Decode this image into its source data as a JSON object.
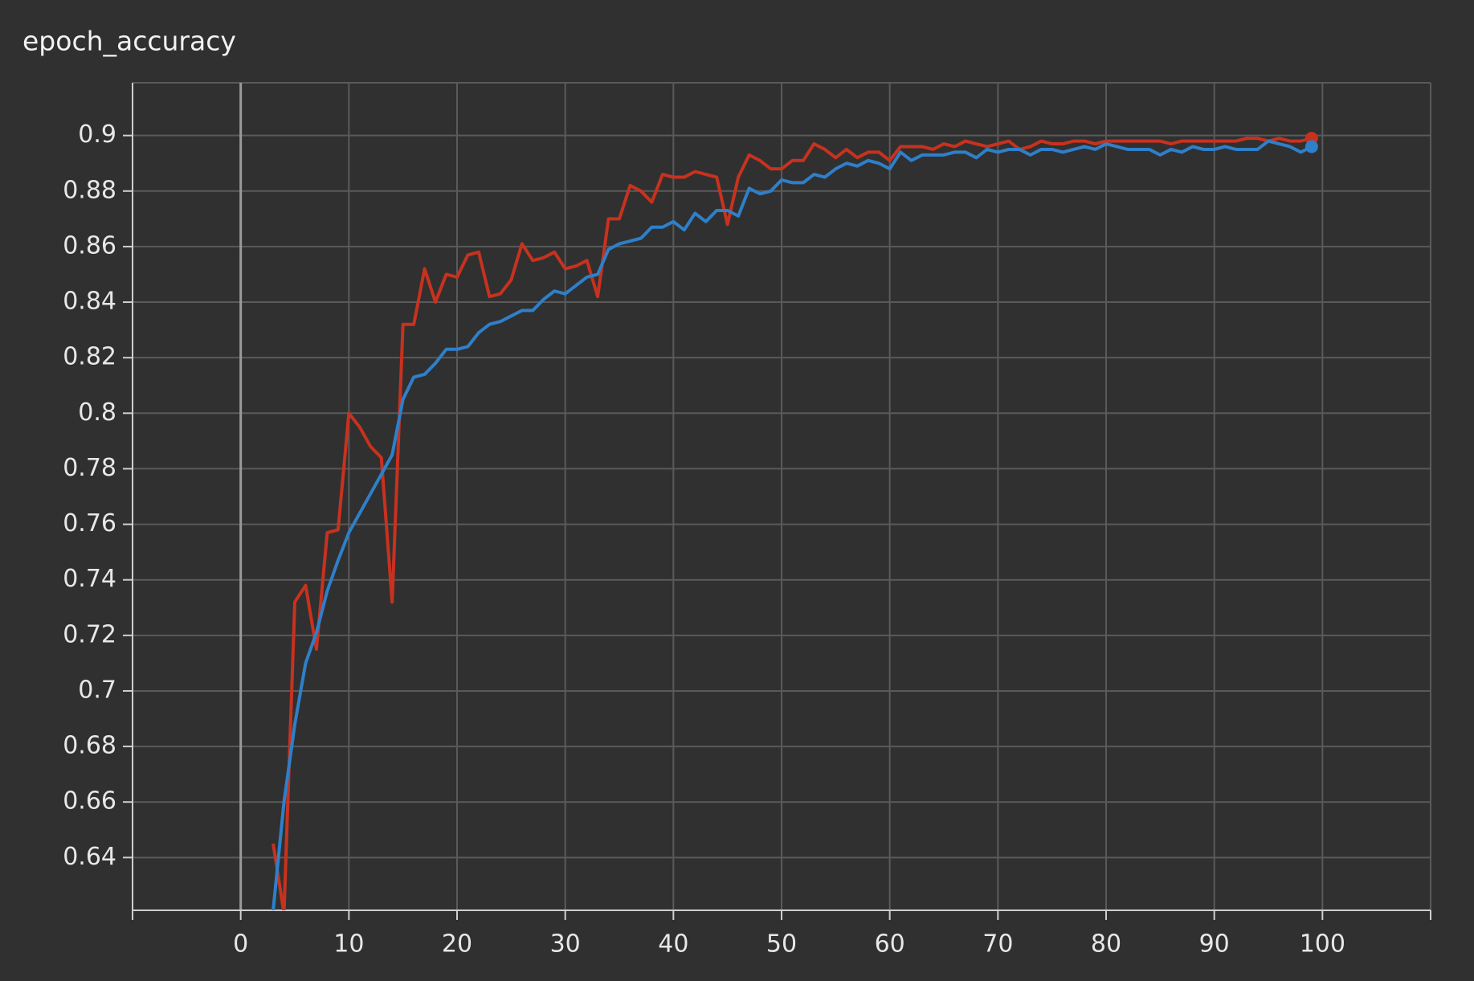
{
  "chart_data": {
    "type": "line",
    "title": "epoch_accuracy",
    "x": [
      3,
      4,
      5,
      6,
      7,
      8,
      9,
      10,
      11,
      12,
      13,
      14,
      15,
      16,
      17,
      18,
      19,
      20,
      21,
      22,
      23,
      24,
      25,
      26,
      27,
      28,
      29,
      30,
      31,
      32,
      33,
      34,
      35,
      36,
      37,
      38,
      39,
      40,
      41,
      42,
      43,
      44,
      45,
      46,
      47,
      48,
      49,
      50,
      51,
      52,
      53,
      54,
      55,
      56,
      57,
      58,
      59,
      60,
      61,
      62,
      63,
      64,
      65,
      66,
      67,
      68,
      69,
      70,
      71,
      72,
      73,
      74,
      75,
      76,
      77,
      78,
      79,
      80,
      81,
      82,
      83,
      84,
      85,
      86,
      87,
      88,
      89,
      90,
      91,
      92,
      93,
      94,
      95,
      96,
      97,
      98,
      99
    ],
    "series": [
      {
        "color": "#c7321f",
        "values": [
          0.645,
          0.62,
          0.732,
          0.738,
          0.715,
          0.757,
          0.758,
          0.8,
          0.795,
          0.788,
          0.784,
          0.732,
          0.832,
          0.832,
          0.852,
          0.84,
          0.85,
          0.849,
          0.857,
          0.858,
          0.842,
          0.843,
          0.848,
          0.861,
          0.855,
          0.856,
          0.858,
          0.852,
          0.853,
          0.855,
          0.842,
          0.87,
          0.87,
          0.882,
          0.88,
          0.876,
          0.886,
          0.885,
          0.885,
          0.887,
          0.886,
          0.885,
          0.868,
          0.885,
          0.893,
          0.891,
          0.888,
          0.888,
          0.891,
          0.891,
          0.897,
          0.895,
          0.892,
          0.895,
          0.892,
          0.894,
          0.894,
          0.891,
          0.896,
          0.896,
          0.896,
          0.895,
          0.897,
          0.896,
          0.898,
          0.897,
          0.896,
          0.897,
          0.898,
          0.895,
          0.896,
          0.898,
          0.897,
          0.897,
          0.898,
          0.898,
          0.897,
          0.898,
          0.898,
          0.898,
          0.898,
          0.898,
          0.898,
          0.897,
          0.898,
          0.898,
          0.898,
          0.898,
          0.898,
          0.898,
          0.899,
          0.899,
          0.898,
          0.899,
          0.898,
          0.898,
          0.899
        ]
      },
      {
        "color": "#2f7fc9",
        "values": [
          0.621,
          0.66,
          0.688,
          0.71,
          0.721,
          0.736,
          0.747,
          0.757,
          0.764,
          0.771,
          0.778,
          0.785,
          0.805,
          0.813,
          0.814,
          0.818,
          0.823,
          0.823,
          0.824,
          0.829,
          0.832,
          0.833,
          0.835,
          0.837,
          0.837,
          0.841,
          0.844,
          0.843,
          0.846,
          0.849,
          0.85,
          0.859,
          0.861,
          0.862,
          0.863,
          0.867,
          0.867,
          0.869,
          0.866,
          0.872,
          0.869,
          0.873,
          0.873,
          0.871,
          0.881,
          0.879,
          0.88,
          0.884,
          0.883,
          0.883,
          0.886,
          0.885,
          0.888,
          0.89,
          0.889,
          0.891,
          0.89,
          0.888,
          0.894,
          0.891,
          0.893,
          0.893,
          0.893,
          0.894,
          0.894,
          0.892,
          0.895,
          0.894,
          0.895,
          0.895,
          0.893,
          0.895,
          0.895,
          0.894,
          0.895,
          0.896,
          0.895,
          0.897,
          0.896,
          0.895,
          0.895,
          0.895,
          0.893,
          0.895,
          0.894,
          0.896,
          0.895,
          0.895,
          0.896,
          0.895,
          0.895,
          0.895,
          0.898,
          0.897,
          0.896,
          0.894,
          0.896
        ]
      }
    ],
    "xlim": [
      -10,
      110
    ],
    "ylim": [
      0.621,
      0.919
    ],
    "xticks": [
      0,
      10,
      20,
      30,
      40,
      50,
      60,
      70,
      80,
      90,
      100
    ],
    "yticks": [
      0.64,
      0.66,
      0.68,
      0.7,
      0.72,
      0.74,
      0.76,
      0.78,
      0.8,
      0.82,
      0.84,
      0.86,
      0.88,
      0.9
    ],
    "grid": true
  }
}
